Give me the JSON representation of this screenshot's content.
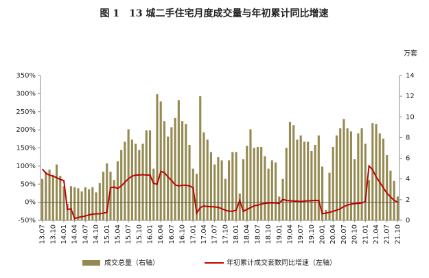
{
  "chart_data": {
    "type": "bar",
    "title": "图 1　13 城二手住宅月度成交量与年初累计同比增速",
    "y2_unit": "万套",
    "categories": [
      "13.07",
      null,
      null,
      "13.10",
      null,
      null,
      "14.01",
      null,
      null,
      "14.04",
      null,
      null,
      "14.07",
      null,
      null,
      "14.10",
      null,
      null,
      "15.01",
      null,
      null,
      "15.04",
      null,
      null,
      "15.07",
      null,
      null,
      "15.10",
      null,
      null,
      "16.01",
      null,
      null,
      "16.04",
      null,
      null,
      "16.07",
      null,
      null,
      "16.10",
      null,
      null,
      "17.01",
      null,
      null,
      "17.04",
      null,
      null,
      "17.07",
      null,
      null,
      "17.10",
      null,
      null,
      "18.01",
      null,
      null,
      "18.04",
      null,
      null,
      "18.07",
      null,
      null,
      "18.10",
      null,
      null,
      "19.01",
      null,
      null,
      "19.04",
      null,
      null,
      "19.07",
      null,
      null,
      "19.10",
      null,
      null,
      "20.01",
      null,
      null,
      "20.04",
      null,
      null,
      "20.07",
      null,
      null,
      "20.10",
      null,
      null,
      "21.01",
      null,
      null,
      "21.04",
      null,
      null,
      "21.07",
      null,
      null,
      "21.10"
    ],
    "series": [
      {
        "name": "成交总量（右轴）",
        "type": "bar",
        "axis": "y2",
        "color": "#958b52",
        "values": [
          4.0,
          4.7,
          4.9,
          4.4,
          5.4,
          4.3,
          3.3,
          1.6,
          3.3,
          3.2,
          3.1,
          2.8,
          3.2,
          3.0,
          3.2,
          2.7,
          3.6,
          4.7,
          5.5,
          4.7,
          3.9,
          5.7,
          6.8,
          7.6,
          8.8,
          7.8,
          7.4,
          6.8,
          7.4,
          8.7,
          8.7,
          5.0,
          12.2,
          11.5,
          9.6,
          8.1,
          9.0,
          9.9,
          11.6,
          9.6,
          9.3,
          7.3,
          5.0,
          4.5,
          12.0,
          8.5,
          7.8,
          6.6,
          5.4,
          6.1,
          5.8,
          4.0,
          5.8,
          6.6,
          6.6,
          2.6,
          5.9,
          7.2,
          8.8,
          7.0,
          7.1,
          7.1,
          6.2,
          5.0,
          5.8,
          5.6,
          2.3,
          4.0,
          7.0,
          9.5,
          9.2,
          7.8,
          8.2,
          7.6,
          7.6,
          6.7,
          7.3,
          8.2,
          5.2,
          1.0,
          4.6,
          7.1,
          8.2,
          8.9,
          9.8,
          8.9,
          8.6,
          5.9,
          8.4,
          8.9,
          7.4,
          3.9,
          9.4,
          9.3,
          8.4,
          7.9,
          6.3,
          4.8,
          3.8,
          2.3
        ]
      },
      {
        "name": "年初累计成交套数同比增速（左轴）",
        "type": "line",
        "axis": "y",
        "color": "#c00000",
        "values": [
          92,
          80,
          75,
          72,
          68,
          63,
          60,
          -20,
          -18,
          -45,
          -42,
          -40,
          -38,
          -35,
          -33,
          -32,
          -32,
          -30,
          -28,
          40,
          42,
          38,
          45,
          55,
          65,
          72,
          75,
          75,
          76,
          75,
          75,
          52,
          50,
          85,
          82,
          70,
          60,
          48,
          45,
          47,
          47,
          45,
          40,
          -30,
          -15,
          -10,
          -12,
          -12,
          -13,
          -14,
          -18,
          -22,
          -25,
          -25,
          -22,
          5,
          -25,
          -20,
          -15,
          -10,
          -8,
          -5,
          -3,
          -2,
          -2,
          -2,
          -3,
          8,
          5,
          4,
          3,
          3,
          2,
          3,
          4,
          4,
          5,
          5,
          -32,
          -30,
          -28,
          -25,
          -22,
          -18,
          -12,
          -8,
          -5,
          -4,
          -3,
          -2,
          2,
          100,
          90,
          70,
          55,
          40,
          25,
          15,
          5,
          0
        ]
      }
    ],
    "ylim": [
      -50,
      350
    ],
    "yticks": [
      {
        "value": -50,
        "label": "-50%"
      },
      {
        "value": 0,
        "label": "0%"
      },
      {
        "value": 50,
        "label": "50%"
      },
      {
        "value": 100,
        "label": "100%"
      },
      {
        "value": 150,
        "label": "150%"
      },
      {
        "value": 200,
        "label": "200%"
      },
      {
        "value": 250,
        "label": "250%"
      },
      {
        "value": 300,
        "label": "300%"
      },
      {
        "value": 350,
        "label": "350%"
      }
    ],
    "y2lim": [
      0,
      14
    ],
    "y2ticks": [
      0,
      2,
      4,
      6,
      8,
      10,
      12,
      14
    ],
    "legend": "bottom"
  }
}
